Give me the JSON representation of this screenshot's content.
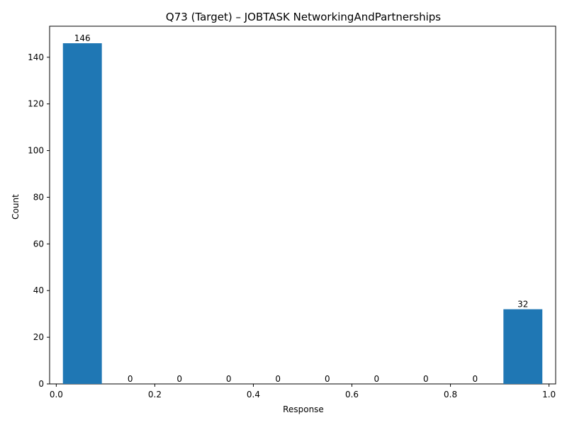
{
  "chart_data": {
    "type": "bar",
    "title": "Q73 (Target) – JOBTASK NetworkingAndPartnerships",
    "xlabel": "Response",
    "ylabel": "Count",
    "xlim": [
      -0.0135,
      1.0135
    ],
    "ylim": [
      0,
      153.3
    ],
    "bins": [
      {
        "x0": 0.0135,
        "x1": 0.0925,
        "value": 146,
        "label": "146"
      },
      {
        "x0": 0.15,
        "x1": 0.15,
        "value": 0,
        "label": "0"
      },
      {
        "x0": 0.25,
        "x1": 0.25,
        "value": 0,
        "label": "0"
      },
      {
        "x0": 0.35,
        "x1": 0.35,
        "value": 0,
        "label": "0"
      },
      {
        "x0": 0.45,
        "x1": 0.45,
        "value": 0,
        "label": "0"
      },
      {
        "x0": 0.55,
        "x1": 0.55,
        "value": 0,
        "label": "0"
      },
      {
        "x0": 0.65,
        "x1": 0.65,
        "value": 0,
        "label": "0"
      },
      {
        "x0": 0.75,
        "x1": 0.75,
        "value": 0,
        "label": "0"
      },
      {
        "x0": 0.85,
        "x1": 0.85,
        "value": 0,
        "label": "0"
      },
      {
        "x0": 0.9075,
        "x1": 0.9865,
        "value": 32,
        "label": "32"
      }
    ],
    "xticks": [
      "0.0",
      "0.2",
      "0.4",
      "0.6",
      "0.8",
      "1.0"
    ],
    "xtick_values": [
      0,
      0.2,
      0.4,
      0.6,
      0.8,
      1.0
    ],
    "yticks": [
      "0",
      "20",
      "40",
      "60",
      "80",
      "100",
      "120",
      "140"
    ],
    "ytick_values": [
      0,
      20,
      40,
      60,
      80,
      100,
      120,
      140
    ],
    "grid": false,
    "legend": false
  },
  "colors": {
    "bar": "#1f77b4",
    "axis": "#000000",
    "background": "#ffffff"
  }
}
